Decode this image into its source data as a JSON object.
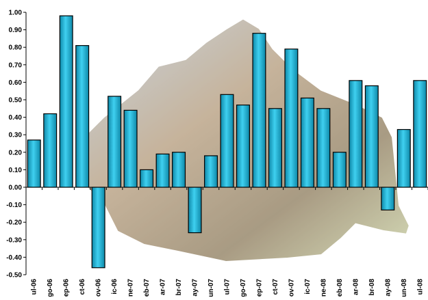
{
  "chart_data": {
    "type": "bar",
    "categories": [
      "ul-06",
      "go-06",
      "ep-06",
      "ct-06",
      "ov-06",
      "ic-06",
      "ne-07",
      "eb-07",
      "ar-07",
      "br-07",
      "ay-07",
      "un-07",
      "ul-07",
      "go-07",
      "ep-07",
      "ct-07",
      "ov-07",
      "ic-07",
      "ne-08",
      "eb-08",
      "ar-08",
      "br-08",
      "ay-08",
      "un-08",
      "ul-08"
    ],
    "values": [
      0.27,
      0.42,
      0.98,
      0.81,
      -0.46,
      0.52,
      0.44,
      0.1,
      0.19,
      0.2,
      -0.26,
      0.18,
      0.53,
      0.47,
      0.88,
      0.45,
      0.79,
      0.51,
      0.45,
      0.2,
      0.61,
      0.58,
      -0.13,
      0.33,
      0.61
    ],
    "color": "#1cb4d6",
    "ylim": [
      -0.5,
      1.0
    ],
    "yticks": [
      {
        "value": -0.5,
        "label": "-0.50"
      },
      {
        "value": -0.4,
        "label": "-0.40"
      },
      {
        "value": -0.3,
        "label": "-0.30"
      },
      {
        "value": -0.2,
        "label": "-0.20"
      },
      {
        "value": -0.1,
        "label": "-0.10"
      },
      {
        "value": 0,
        "label": "0.00"
      },
      {
        "value": 0.1,
        "label": "0.10"
      },
      {
        "value": 0.2,
        "label": "0.20"
      },
      {
        "value": 0.3,
        "label": "0.30"
      },
      {
        "value": 0.4,
        "label": "0.40"
      },
      {
        "value": 0.5,
        "label": "0.50"
      },
      {
        "value": 0.6,
        "label": "0.60"
      },
      {
        "value": 0.7,
        "label": "0.70"
      },
      {
        "value": 0.8,
        "label": "0.80"
      },
      {
        "value": 0.9,
        "label": "0.90"
      },
      {
        "value": 1.0,
        "label": "1.00"
      }
    ],
    "grid": false
  }
}
